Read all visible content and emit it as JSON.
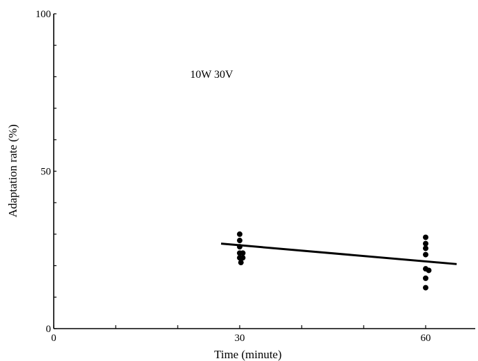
{
  "chart_data": {
    "type": "scatter",
    "title": "",
    "xlabel": "Time (minute)",
    "ylabel": "Adaptation rate (%)",
    "xlim": [
      0,
      68
    ],
    "ylim": [
      0,
      100
    ],
    "x_ticks": [
      0,
      10,
      20,
      30,
      40,
      50,
      60
    ],
    "x_tick_labels": [
      "0",
      "",
      "",
      "30",
      "",
      "",
      "60"
    ],
    "y_ticks": [
      0,
      10,
      20,
      30,
      40,
      50,
      60,
      70,
      80,
      90,
      100
    ],
    "y_tick_labels": [
      "0",
      "",
      "",
      "",
      "",
      "50",
      "",
      "",
      "",
      "",
      "100"
    ],
    "annotation": "10W 30V",
    "grid": false,
    "series": [
      {
        "points": [
          {
            "x": 30,
            "y": 30
          },
          {
            "x": 30,
            "y": 28
          },
          {
            "x": 30,
            "y": 26
          },
          {
            "x": 30,
            "y": 24
          },
          {
            "x": 30.5,
            "y": 24
          },
          {
            "x": 30,
            "y": 22.5
          },
          {
            "x": 30.5,
            "y": 22.5
          },
          {
            "x": 30.2,
            "y": 21
          }
        ]
      },
      {
        "points": [
          {
            "x": 60,
            "y": 29
          },
          {
            "x": 60,
            "y": 27
          },
          {
            "x": 60,
            "y": 25.5
          },
          {
            "x": 60,
            "y": 23.5
          },
          {
            "x": 60,
            "y": 19
          },
          {
            "x": 60.5,
            "y": 18.5
          },
          {
            "x": 60,
            "y": 16
          },
          {
            "x": 60,
            "y": 13
          }
        ]
      }
    ],
    "trendline": {
      "x": [
        27,
        65
      ],
      "y": [
        27,
        20.5
      ]
    }
  }
}
